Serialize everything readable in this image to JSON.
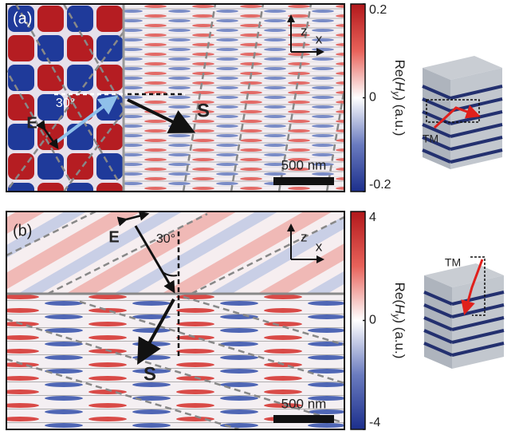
{
  "panels": [
    {
      "label": "(a)",
      "angle": "30°",
      "field": "E",
      "poynting": "S",
      "axis_z": "z",
      "axis_x": "x",
      "scale_bar": "500 nm",
      "colorbar": {
        "label_prefix": "Re(",
        "label_var": "H",
        "label_sub": "y",
        "label_suffix": ") (a.u.)",
        "ticks": [
          0.2,
          0,
          -0.2
        ]
      },
      "inset_label": "TM"
    },
    {
      "label": "(b)",
      "angle": "30°",
      "field": "E",
      "poynting": "S",
      "axis_z": "z",
      "axis_x": "x",
      "scale_bar": "500 nm",
      "colorbar": {
        "label_prefix": "Re(",
        "label_var": "H",
        "label_sub": "y",
        "label_suffix": ") (a.u.)",
        "ticks": [
          4,
          0,
          -4
        ]
      },
      "inset_label": "TM"
    }
  ]
}
